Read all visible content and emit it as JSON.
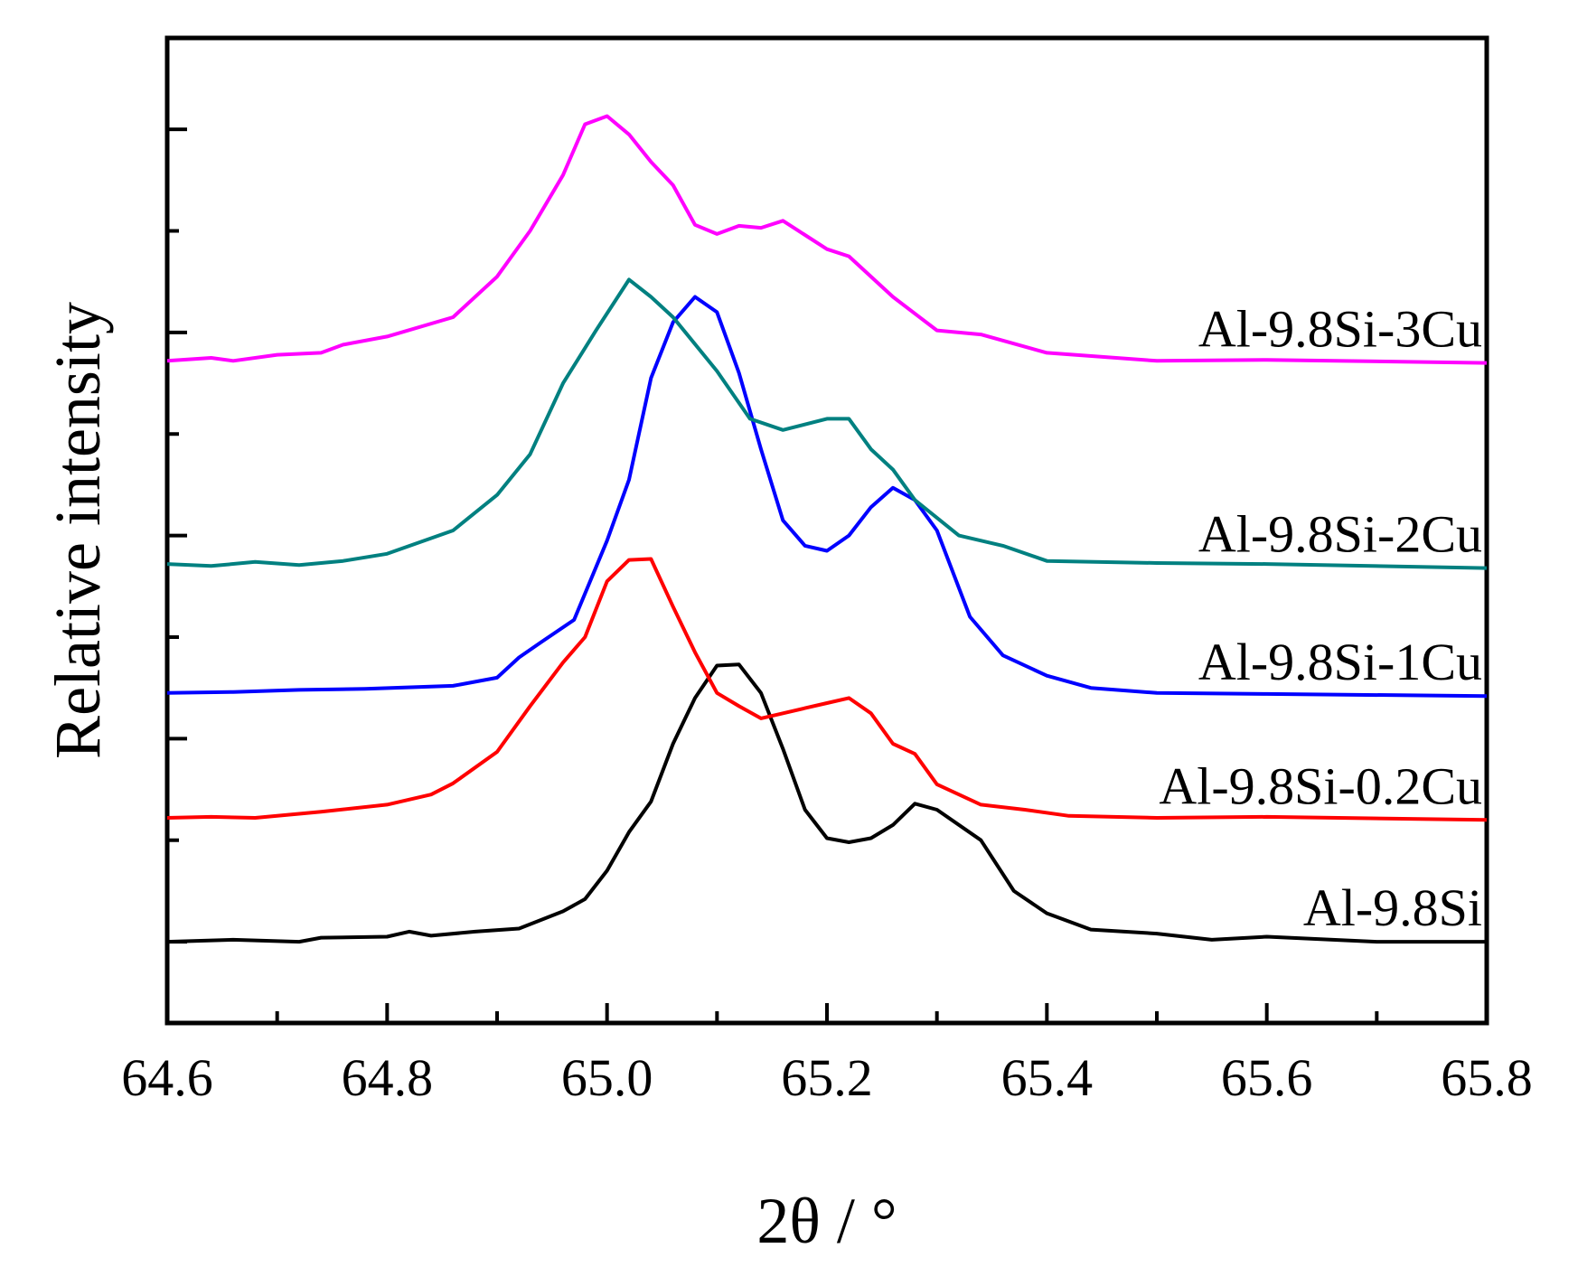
{
  "chart_data": {
    "type": "line",
    "title": "",
    "xlabel": "2θ / °",
    "ylabel": "Relative intensity",
    "xlim": [
      64.6,
      65.8
    ],
    "ylim": [
      -0.8,
      8.9
    ],
    "x_ticks": [
      "64.6",
      "64.8",
      "65.0",
      "65.2",
      "65.4",
      "65.6",
      "65.8"
    ],
    "grid": false,
    "legend": "inline labels at right",
    "series": [
      {
        "name": "Al-9.8Si",
        "color": "#000000",
        "points": [
          [
            64.6,
            0.0
          ],
          [
            64.66,
            0.02
          ],
          [
            64.72,
            0.0
          ],
          [
            64.74,
            0.04
          ],
          [
            64.8,
            0.05
          ],
          [
            64.82,
            0.1
          ],
          [
            64.84,
            0.06
          ],
          [
            64.88,
            0.1
          ],
          [
            64.92,
            0.13
          ],
          [
            64.96,
            0.3
          ],
          [
            64.98,
            0.42
          ],
          [
            65.0,
            0.7
          ],
          [
            65.02,
            1.08
          ],
          [
            65.04,
            1.38
          ],
          [
            65.06,
            1.95
          ],
          [
            65.08,
            2.4
          ],
          [
            65.1,
            2.72
          ],
          [
            65.12,
            2.73
          ],
          [
            65.14,
            2.45
          ],
          [
            65.16,
            1.9
          ],
          [
            65.18,
            1.3
          ],
          [
            65.2,
            1.02
          ],
          [
            65.22,
            0.98
          ],
          [
            65.24,
            1.02
          ],
          [
            65.26,
            1.15
          ],
          [
            65.28,
            1.36
          ],
          [
            65.3,
            1.3
          ],
          [
            65.34,
            1.0
          ],
          [
            65.37,
            0.5
          ],
          [
            65.4,
            0.28
          ],
          [
            65.44,
            0.12
          ],
          [
            65.5,
            0.08
          ],
          [
            65.55,
            0.02
          ],
          [
            65.6,
            0.05
          ],
          [
            65.7,
            0.0
          ],
          [
            65.8,
            0.0
          ]
        ]
      },
      {
        "name": "Al-9.8Si-0.2Cu",
        "color": "#ff0000",
        "points": [
          [
            64.6,
            1.22
          ],
          [
            64.64,
            1.23
          ],
          [
            64.68,
            1.22
          ],
          [
            64.74,
            1.28
          ],
          [
            64.8,
            1.35
          ],
          [
            64.84,
            1.45
          ],
          [
            64.86,
            1.56
          ],
          [
            64.9,
            1.87
          ],
          [
            64.93,
            2.32
          ],
          [
            64.96,
            2.75
          ],
          [
            64.98,
            3.0
          ],
          [
            65.0,
            3.55
          ],
          [
            65.02,
            3.76
          ],
          [
            65.04,
            3.77
          ],
          [
            65.06,
            3.3
          ],
          [
            65.08,
            2.85
          ],
          [
            65.1,
            2.45
          ],
          [
            65.12,
            2.32
          ],
          [
            65.14,
            2.2
          ],
          [
            65.16,
            2.25
          ],
          [
            65.18,
            2.3
          ],
          [
            65.2,
            2.35
          ],
          [
            65.22,
            2.4
          ],
          [
            65.24,
            2.25
          ],
          [
            65.26,
            1.95
          ],
          [
            65.28,
            1.85
          ],
          [
            65.3,
            1.55
          ],
          [
            65.34,
            1.35
          ],
          [
            65.38,
            1.3
          ],
          [
            65.42,
            1.24
          ],
          [
            65.5,
            1.22
          ],
          [
            65.6,
            1.23
          ],
          [
            65.8,
            1.2
          ]
        ]
      },
      {
        "name": "Al-9.8Si-1Cu",
        "color": "#0000ff",
        "points": [
          [
            64.6,
            2.45
          ],
          [
            64.66,
            2.46
          ],
          [
            64.72,
            2.48
          ],
          [
            64.78,
            2.49
          ],
          [
            64.86,
            2.52
          ],
          [
            64.9,
            2.6
          ],
          [
            64.92,
            2.8
          ],
          [
            64.94,
            2.95
          ],
          [
            64.97,
            3.17
          ],
          [
            65.0,
            3.95
          ],
          [
            65.02,
            4.55
          ],
          [
            65.04,
            5.55
          ],
          [
            65.06,
            6.1
          ],
          [
            65.08,
            6.35
          ],
          [
            65.1,
            6.2
          ],
          [
            65.12,
            5.6
          ],
          [
            65.14,
            4.85
          ],
          [
            65.16,
            4.15
          ],
          [
            65.18,
            3.9
          ],
          [
            65.2,
            3.85
          ],
          [
            65.22,
            4.0
          ],
          [
            65.24,
            4.28
          ],
          [
            65.26,
            4.47
          ],
          [
            65.28,
            4.35
          ],
          [
            65.3,
            4.05
          ],
          [
            65.33,
            3.2
          ],
          [
            65.36,
            2.82
          ],
          [
            65.4,
            2.62
          ],
          [
            65.44,
            2.5
          ],
          [
            65.5,
            2.45
          ],
          [
            65.6,
            2.44
          ],
          [
            65.8,
            2.42
          ]
        ]
      },
      {
        "name": "Al-9.8Si-2Cu",
        "color": "#008080",
        "points": [
          [
            64.6,
            3.72
          ],
          [
            64.64,
            3.7
          ],
          [
            64.68,
            3.74
          ],
          [
            64.72,
            3.71
          ],
          [
            64.76,
            3.75
          ],
          [
            64.8,
            3.82
          ],
          [
            64.86,
            4.05
          ],
          [
            64.9,
            4.4
          ],
          [
            64.93,
            4.8
          ],
          [
            64.96,
            5.5
          ],
          [
            64.99,
            6.02
          ],
          [
            65.02,
            6.52
          ],
          [
            65.04,
            6.35
          ],
          [
            65.06,
            6.15
          ],
          [
            65.1,
            5.62
          ],
          [
            65.13,
            5.15
          ],
          [
            65.16,
            5.04
          ],
          [
            65.2,
            5.15
          ],
          [
            65.22,
            5.15
          ],
          [
            65.24,
            4.85
          ],
          [
            65.26,
            4.65
          ],
          [
            65.28,
            4.35
          ],
          [
            65.32,
            4.0
          ],
          [
            65.36,
            3.9
          ],
          [
            65.4,
            3.75
          ],
          [
            65.5,
            3.73
          ],
          [
            65.6,
            3.72
          ],
          [
            65.8,
            3.68
          ]
        ]
      },
      {
        "name": "Al-9.8Si-3Cu",
        "color": "#ff00ff",
        "points": [
          [
            64.6,
            5.72
          ],
          [
            64.64,
            5.75
          ],
          [
            64.66,
            5.72
          ],
          [
            64.7,
            5.78
          ],
          [
            64.74,
            5.8
          ],
          [
            64.76,
            5.88
          ],
          [
            64.8,
            5.96
          ],
          [
            64.86,
            6.15
          ],
          [
            64.9,
            6.55
          ],
          [
            64.93,
            7.0
          ],
          [
            64.96,
            7.55
          ],
          [
            64.98,
            8.05
          ],
          [
            65.0,
            8.13
          ],
          [
            65.02,
            7.95
          ],
          [
            65.04,
            7.68
          ],
          [
            65.06,
            7.45
          ],
          [
            65.08,
            7.06
          ],
          [
            65.1,
            6.97
          ],
          [
            65.12,
            7.05
          ],
          [
            65.14,
            7.03
          ],
          [
            65.16,
            7.1
          ],
          [
            65.2,
            6.82
          ],
          [
            65.22,
            6.75
          ],
          [
            65.26,
            6.35
          ],
          [
            65.3,
            6.02
          ],
          [
            65.34,
            5.98
          ],
          [
            65.4,
            5.8
          ],
          [
            65.5,
            5.72
          ],
          [
            65.6,
            5.73
          ],
          [
            65.8,
            5.7
          ]
        ]
      }
    ]
  }
}
